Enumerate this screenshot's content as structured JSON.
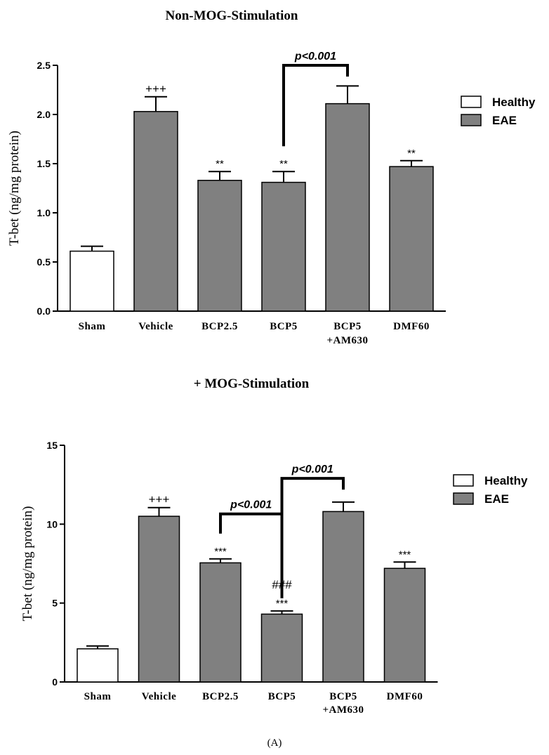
{
  "figure_label": "(A)",
  "colors": {
    "healthy": "#ffffff",
    "eae": "#808080",
    "stroke": "#000000"
  },
  "chart_data": [
    {
      "type": "bar",
      "title": "Non-MOG-Stimulation",
      "ylabel": "T-bet (ng/mg protein)",
      "ylim": [
        0,
        2.5
      ],
      "yticks": [
        0.0,
        0.5,
        1.0,
        1.5,
        2.0,
        2.5
      ],
      "ytick_labels": [
        "0.0",
        "0.5",
        "1.0",
        "1.5",
        "2.0",
        "2.5"
      ],
      "categories": [
        [
          "Sham"
        ],
        [
          "Vehicle"
        ],
        [
          "BCP2.5"
        ],
        [
          "BCP5"
        ],
        [
          "BCP5",
          "+AM630"
        ],
        [
          "DMF60"
        ]
      ],
      "values": [
        0.61,
        2.03,
        1.33,
        1.31,
        2.11,
        1.47
      ],
      "errors": [
        0.05,
        0.15,
        0.09,
        0.11,
        0.18,
        0.06
      ],
      "groups": [
        "healthy",
        "eae",
        "eae",
        "eae",
        "eae",
        "eae"
      ],
      "annotations": [
        {
          "bar": 1,
          "lines": [
            "+++"
          ]
        },
        {
          "bar": 2,
          "lines": [
            "**"
          ]
        },
        {
          "bar": 3,
          "lines": [
            "**"
          ]
        },
        {
          "bar": 5,
          "lines": [
            "**"
          ]
        }
      ],
      "brackets": [
        {
          "from": 3,
          "to": 4,
          "level": 2.5,
          "label": "p<0.001"
        }
      ],
      "legend": [
        {
          "label": "Healthy",
          "group": "healthy"
        },
        {
          "label": "EAE",
          "group": "eae"
        }
      ],
      "legend_position": "right"
    },
    {
      "type": "bar",
      "title": "+ MOG-Stimulation",
      "ylabel": "T-bet (ng/mg protein)",
      "ylim": [
        0,
        15
      ],
      "yticks": [
        0,
        5,
        10,
        15
      ],
      "ytick_labels": [
        "0",
        "5",
        "10",
        "15"
      ],
      "categories": [
        [
          "Sham"
        ],
        [
          "Vehicle"
        ],
        [
          "BCP2.5"
        ],
        [
          "BCP5"
        ],
        [
          "BCP5",
          "+AM630"
        ],
        [
          "DMF60"
        ]
      ],
      "values": [
        2.1,
        10.5,
        7.55,
        4.3,
        10.8,
        7.2
      ],
      "errors": [
        0.18,
        0.55,
        0.25,
        0.2,
        0.6,
        0.4
      ],
      "groups": [
        "healthy",
        "eae",
        "eae",
        "eae",
        "eae",
        "eae"
      ],
      "annotations": [
        {
          "bar": 1,
          "lines": [
            "+++"
          ]
        },
        {
          "bar": 2,
          "lines": [
            "***"
          ]
        },
        {
          "bar": 3,
          "lines": [
            "###",
            "***"
          ]
        },
        {
          "bar": 5,
          "lines": [
            "***"
          ]
        }
      ],
      "brackets": [
        {
          "from": 2,
          "to": 3,
          "level": 10.65,
          "label": "p<0.001"
        },
        {
          "from": 3,
          "to": 4,
          "level": 12.9,
          "label": "p<0.001"
        }
      ],
      "legend": [
        {
          "label": "Healthy",
          "group": "healthy"
        },
        {
          "label": "EAE",
          "group": "eae"
        }
      ],
      "legend_position": "right"
    }
  ]
}
